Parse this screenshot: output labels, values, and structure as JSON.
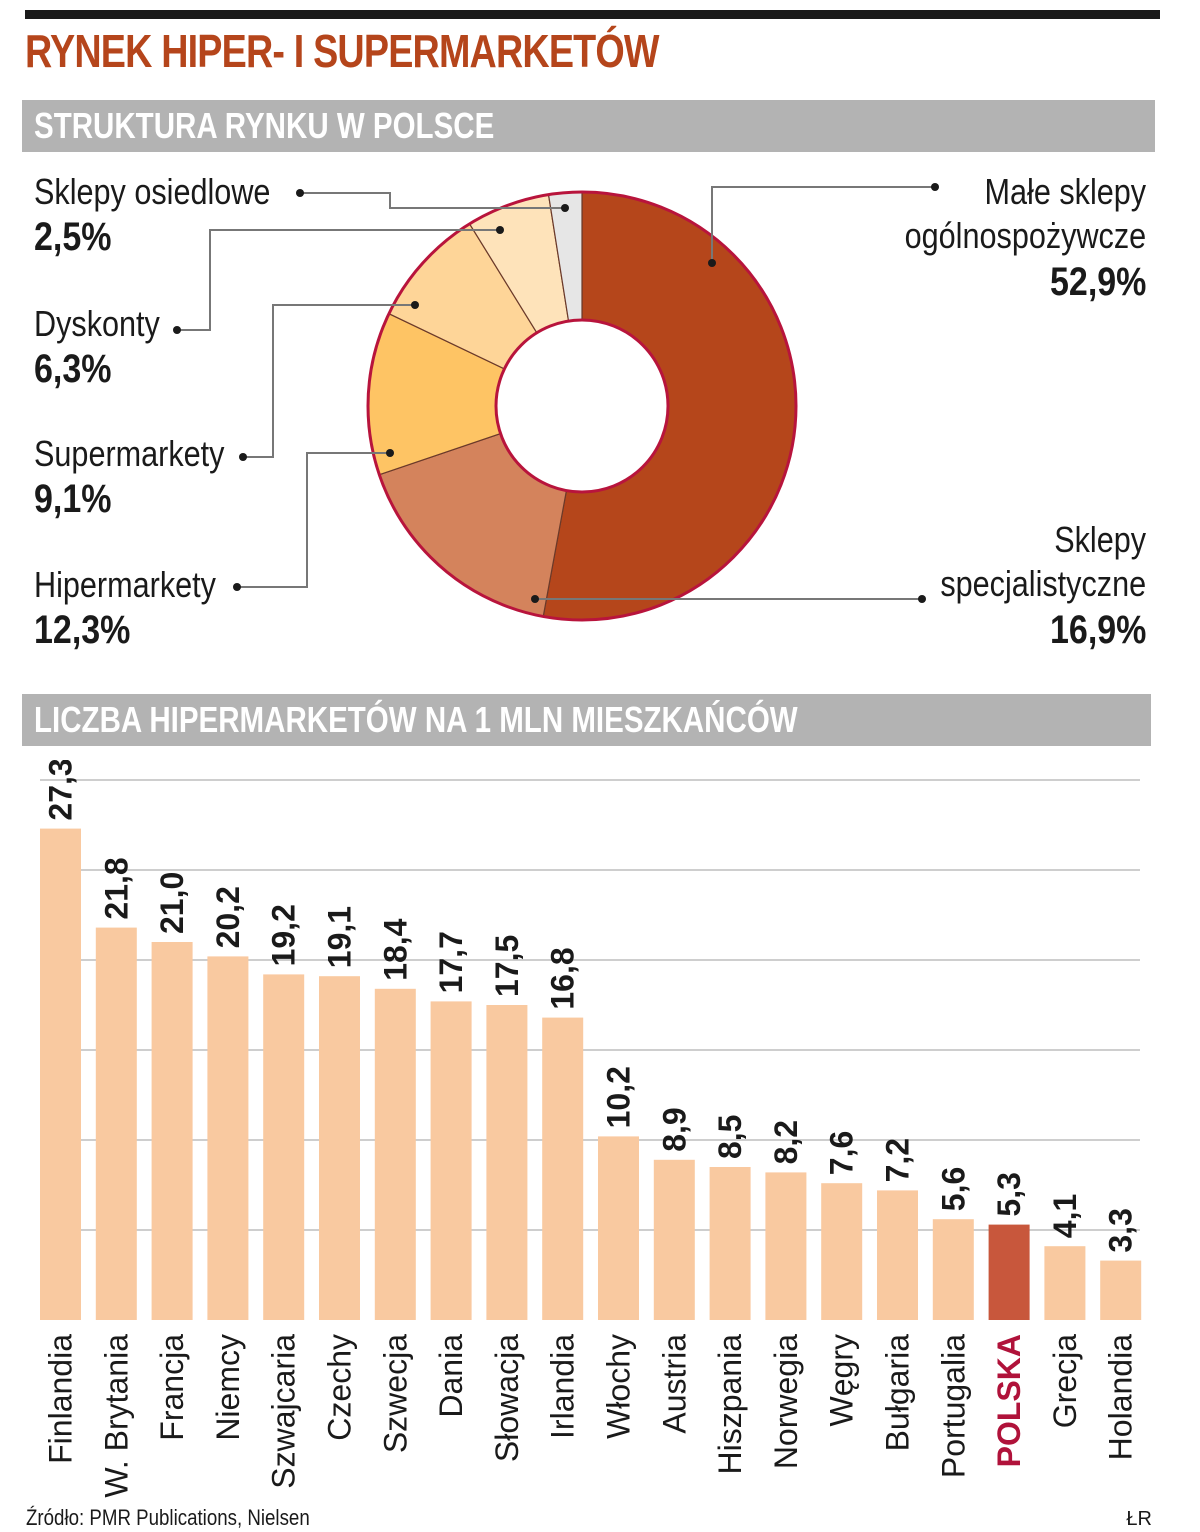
{
  "title": "RYNEK HIPER- I SUPERMARKETÓW",
  "sections": {
    "pie_header": "STRUKTURA RYNKU W POLSCE",
    "bar_header": "LICZBA HIPERMARKETÓW NA 1 MLN MIESZKAŃCÓW"
  },
  "pie_labels": {
    "osiedlowe": {
      "name": "Sklepy osiedlowe",
      "value": "2,5%"
    },
    "dyskonty": {
      "name": "Dyskonty",
      "value": "6,3%"
    },
    "supermarkety": {
      "name": "Supermarkety",
      "value": "9,1%"
    },
    "hipermarkety": {
      "name": "Hipermarkety",
      "value": "12,3%"
    },
    "male_line1": "Małe sklepy",
    "male_line2": "ogólnospożywcze",
    "male_value": "52,9%",
    "spec_line1": "Sklepy",
    "spec_line2": "specjalistyczne",
    "spec_value": "16,9%"
  },
  "source": "Źródło: PMR Publications, Nielsen",
  "credit": "ŁR",
  "colors": {
    "title": "#b5451b",
    "header_bg": "#b3b3b3",
    "bar": "#f9c9a0",
    "bar_highlight": "#c8573c",
    "highlight_label": "#b0123a",
    "donut_outline": "#b8143c"
  },
  "chart_data": [
    {
      "type": "pie",
      "subtype": "donut",
      "title": "STRUKTURA RYNKU W POLSCE",
      "slices": [
        {
          "label": "Małe sklepy ogólnospożywcze",
          "value": 52.9,
          "color": "#b5461b"
        },
        {
          "label": "Sklepy specjalistyczne",
          "value": 16.9,
          "color": "#d4835c"
        },
        {
          "label": "Hipermarkety",
          "value": 12.3,
          "color": "#fec464"
        },
        {
          "label": "Supermarkety",
          "value": 9.1,
          "color": "#fed598"
        },
        {
          "label": "Dyskonty",
          "value": 6.3,
          "color": "#fee3ba"
        },
        {
          "label": "Sklepy osiedlowe",
          "value": 2.5,
          "color": "#e6e6e6"
        }
      ],
      "unit": "%"
    },
    {
      "type": "bar",
      "title": "LICZBA HIPERMARKETÓW NA 1 MLN MIESZKAŃCÓW",
      "categories": [
        "Finlandia",
        "W. Brytania",
        "Francja",
        "Niemcy",
        "Szwajcaria",
        "Czechy",
        "Szwecja",
        "Dania",
        "Słowacja",
        "Irlandia",
        "Włochy",
        "Austria",
        "Hiszpania",
        "Norwegia",
        "Węgry",
        "Bułgaria",
        "Portugalia",
        "POLSKA",
        "Grecja",
        "Holandia"
      ],
      "values": [
        27.3,
        21.8,
        21.0,
        20.2,
        19.2,
        19.1,
        18.4,
        17.7,
        17.5,
        16.8,
        10.2,
        8.9,
        8.5,
        8.2,
        7.6,
        7.2,
        5.6,
        5.3,
        4.1,
        3.3
      ],
      "value_labels": [
        "27,3",
        "21,8",
        "21,0",
        "20,2",
        "19,2",
        "19,1",
        "18,4",
        "17,7",
        "17,5",
        "16,8",
        "10,2",
        "8,9",
        "8,5",
        "8,2",
        "7,6",
        "7,2",
        "5,6",
        "5,3",
        "4,1",
        "3,3"
      ],
      "highlight": "POLSKA",
      "ylim": [
        0,
        30
      ],
      "gridlines": [
        5,
        10,
        15,
        20,
        25,
        30
      ],
      "xlabel": "",
      "ylabel": ""
    }
  ]
}
